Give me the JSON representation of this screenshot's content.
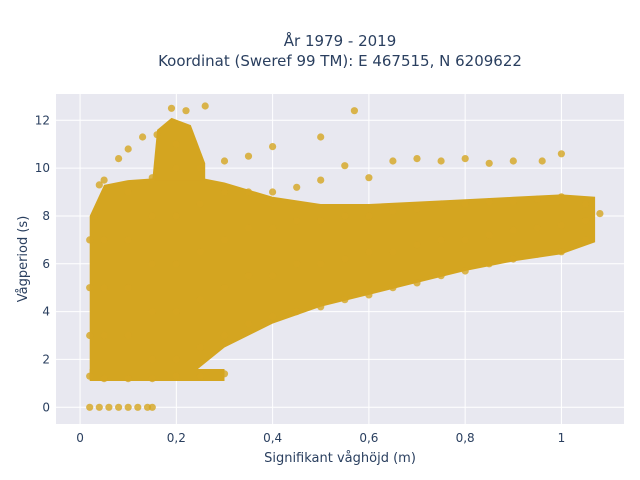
{
  "chart_data": {
    "type": "scatter",
    "title_line1": "År 1979 - 2019",
    "title_line2": "Koordinat (Sweref 99 TM): E 467515, N 6209622",
    "xlabel": "Signifikant våghöjd (m)",
    "ylabel": "Vågperiod (s)",
    "xlim": [
      -0.05,
      1.13
    ],
    "ylim": [
      -0.7,
      13.1
    ],
    "x_ticks": [
      0,
      0.2,
      0.4,
      0.6,
      0.8,
      1
    ],
    "x_tick_labels": [
      "0",
      "0,2",
      "0,4",
      "0,6",
      "0,8",
      "1"
    ],
    "y_ticks": [
      0,
      2,
      4,
      6,
      8,
      10,
      12
    ],
    "y_tick_labels": [
      "0",
      "2",
      "4",
      "6",
      "8",
      "10",
      "12"
    ],
    "grid": true,
    "marker_color": "#D4A520",
    "plot_bg": "#e8e8f0",
    "series": [
      {
        "points": [
          [
            0.02,
            0
          ],
          [
            0.04,
            0
          ],
          [
            0.06,
            0
          ],
          [
            0.08,
            0
          ],
          [
            0.1,
            0
          ],
          [
            0.12,
            0
          ],
          [
            0.14,
            0
          ],
          [
            0.15,
            0
          ],
          [
            0.02,
            1.3
          ],
          [
            0.05,
            1.2
          ],
          [
            0.1,
            1.2
          ],
          [
            0.15,
            1.2
          ],
          [
            0.2,
            1.3
          ],
          [
            0.25,
            1.3
          ],
          [
            0.3,
            1.4
          ],
          [
            0.02,
            3.0
          ],
          [
            0.02,
            5.0
          ],
          [
            0.02,
            7.0
          ],
          [
            0.03,
            8.0
          ],
          [
            0.04,
            9.3
          ],
          [
            0.05,
            9.5
          ],
          [
            0.08,
            10.4
          ],
          [
            0.1,
            10.8
          ],
          [
            0.13,
            11.3
          ],
          [
            0.16,
            11.4
          ],
          [
            0.19,
            12.5
          ],
          [
            0.22,
            12.4
          ],
          [
            0.26,
            12.6
          ],
          [
            0.05,
            3.0
          ],
          [
            0.05,
            5.0
          ],
          [
            0.05,
            7.0
          ],
          [
            0.1,
            3.0
          ],
          [
            0.1,
            5.0
          ],
          [
            0.1,
            7.0
          ],
          [
            0.1,
            9.0
          ],
          [
            0.15,
            2.0
          ],
          [
            0.15,
            4.0
          ],
          [
            0.15,
            6.0
          ],
          [
            0.15,
            8.0
          ],
          [
            0.15,
            9.6
          ],
          [
            0.2,
            2.0
          ],
          [
            0.2,
            4.0
          ],
          [
            0.2,
            6.0
          ],
          [
            0.2,
            8.0
          ],
          [
            0.2,
            10.0
          ],
          [
            0.2,
            11.0
          ],
          [
            0.25,
            2.5
          ],
          [
            0.25,
            4.5
          ],
          [
            0.25,
            6.5
          ],
          [
            0.25,
            8.5
          ],
          [
            0.25,
            10.0
          ],
          [
            0.3,
            3.0
          ],
          [
            0.3,
            5.0
          ],
          [
            0.3,
            7.0
          ],
          [
            0.3,
            9.0
          ],
          [
            0.3,
            10.3
          ],
          [
            0.35,
            3.5
          ],
          [
            0.35,
            5.5
          ],
          [
            0.35,
            7.5
          ],
          [
            0.35,
            9.0
          ],
          [
            0.35,
            10.5
          ],
          [
            0.4,
            3.8
          ],
          [
            0.4,
            5.5
          ],
          [
            0.4,
            7.5
          ],
          [
            0.4,
            9.0
          ],
          [
            0.4,
            10.9
          ],
          [
            0.45,
            4.0
          ],
          [
            0.45,
            6.0
          ],
          [
            0.45,
            7.8
          ],
          [
            0.45,
            9.2
          ],
          [
            0.5,
            4.2
          ],
          [
            0.5,
            6.0
          ],
          [
            0.5,
            7.8
          ],
          [
            0.5,
            9.5
          ],
          [
            0.5,
            11.3
          ],
          [
            0.55,
            4.5
          ],
          [
            0.55,
            6.2
          ],
          [
            0.55,
            8.0
          ],
          [
            0.55,
            10.1
          ],
          [
            0.57,
            12.4
          ],
          [
            0.6,
            4.7
          ],
          [
            0.6,
            6.5
          ],
          [
            0.6,
            8.0
          ],
          [
            0.6,
            9.6
          ],
          [
            0.65,
            5.0
          ],
          [
            0.65,
            6.5
          ],
          [
            0.65,
            8.2
          ],
          [
            0.65,
            10.3
          ],
          [
            0.7,
            5.2
          ],
          [
            0.7,
            6.8
          ],
          [
            0.7,
            8.3
          ],
          [
            0.7,
            10.4
          ],
          [
            0.75,
            5.5
          ],
          [
            0.75,
            7.0
          ],
          [
            0.75,
            8.5
          ],
          [
            0.75,
            10.3
          ],
          [
            0.8,
            5.7
          ],
          [
            0.8,
            7.0
          ],
          [
            0.8,
            8.5
          ],
          [
            0.8,
            10.4
          ],
          [
            0.85,
            6.0
          ],
          [
            0.85,
            7.2
          ],
          [
            0.85,
            8.6
          ],
          [
            0.85,
            10.2
          ],
          [
            0.9,
            6.2
          ],
          [
            0.9,
            7.4
          ],
          [
            0.9,
            8.6
          ],
          [
            0.9,
            10.3
          ],
          [
            0.95,
            6.4
          ],
          [
            0.95,
            7.5
          ],
          [
            0.95,
            8.7
          ],
          [
            0.96,
            10.3
          ],
          [
            1.0,
            6.5
          ],
          [
            1.0,
            7.6
          ],
          [
            1.0,
            8.8
          ],
          [
            1.0,
            10.6
          ],
          [
            1.05,
            7.0
          ],
          [
            1.05,
            7.8
          ],
          [
            1.05,
            8.5
          ],
          [
            1.08,
            8.1
          ]
        ]
      }
    ]
  }
}
